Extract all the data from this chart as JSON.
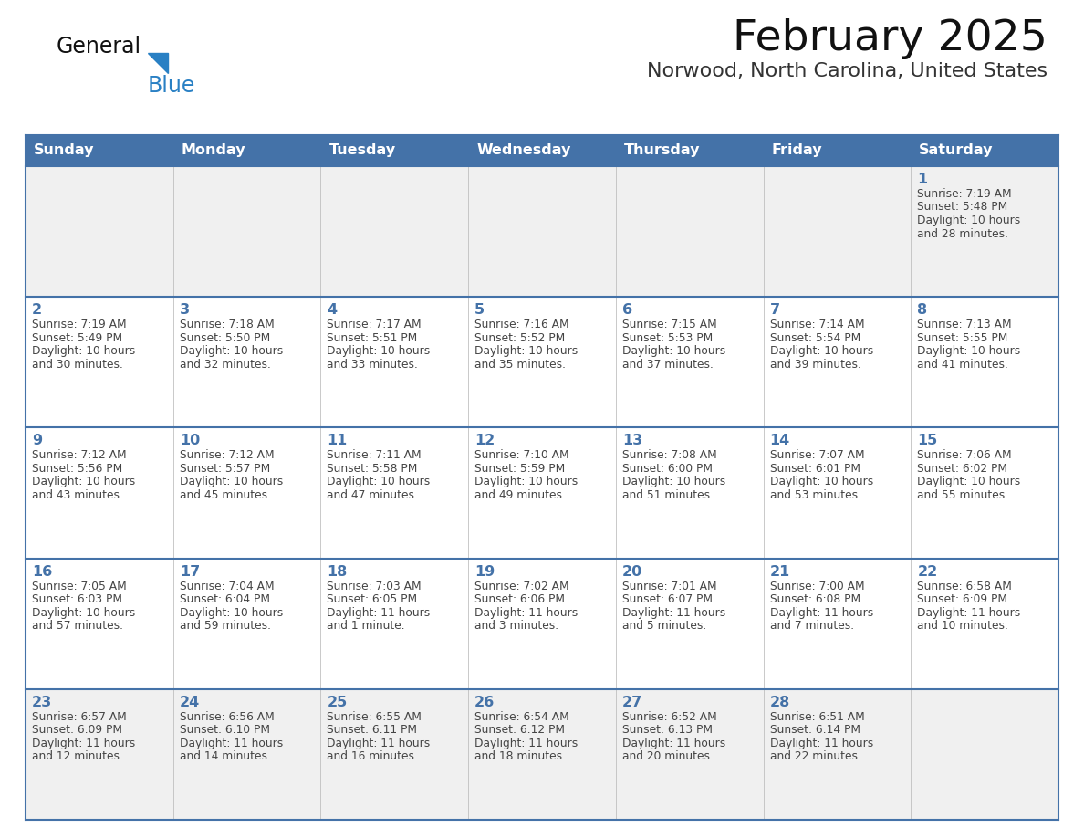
{
  "title": "February 2025",
  "subtitle": "Norwood, North Carolina, United States",
  "days_of_week": [
    "Sunday",
    "Monday",
    "Tuesday",
    "Wednesday",
    "Thursday",
    "Friday",
    "Saturday"
  ],
  "header_bg": "#4472a8",
  "header_text": "#ffffff",
  "row_bg_white": "#ffffff",
  "row_bg_light": "#f0f0f0",
  "cell_border_color": "#4472a8",
  "cell_divider_color": "#c0c0c0",
  "day_num_color": "#4472a8",
  "text_color": "#444444",
  "logo_general_color": "#111111",
  "logo_blue_color": "#2980c4",
  "calendar_data": [
    [
      null,
      null,
      null,
      null,
      null,
      null,
      {
        "day": 1,
        "sunrise": "7:19 AM",
        "sunset": "5:48 PM",
        "daylight": "10 hours and 28 minutes."
      }
    ],
    [
      {
        "day": 2,
        "sunrise": "7:19 AM",
        "sunset": "5:49 PM",
        "daylight": "10 hours and 30 minutes."
      },
      {
        "day": 3,
        "sunrise": "7:18 AM",
        "sunset": "5:50 PM",
        "daylight": "10 hours and 32 minutes."
      },
      {
        "day": 4,
        "sunrise": "7:17 AM",
        "sunset": "5:51 PM",
        "daylight": "10 hours and 33 minutes."
      },
      {
        "day": 5,
        "sunrise": "7:16 AM",
        "sunset": "5:52 PM",
        "daylight": "10 hours and 35 minutes."
      },
      {
        "day": 6,
        "sunrise": "7:15 AM",
        "sunset": "5:53 PM",
        "daylight": "10 hours and 37 minutes."
      },
      {
        "day": 7,
        "sunrise": "7:14 AM",
        "sunset": "5:54 PM",
        "daylight": "10 hours and 39 minutes."
      },
      {
        "day": 8,
        "sunrise": "7:13 AM",
        "sunset": "5:55 PM",
        "daylight": "10 hours and 41 minutes."
      }
    ],
    [
      {
        "day": 9,
        "sunrise": "7:12 AM",
        "sunset": "5:56 PM",
        "daylight": "10 hours and 43 minutes."
      },
      {
        "day": 10,
        "sunrise": "7:12 AM",
        "sunset": "5:57 PM",
        "daylight": "10 hours and 45 minutes."
      },
      {
        "day": 11,
        "sunrise": "7:11 AM",
        "sunset": "5:58 PM",
        "daylight": "10 hours and 47 minutes."
      },
      {
        "day": 12,
        "sunrise": "7:10 AM",
        "sunset": "5:59 PM",
        "daylight": "10 hours and 49 minutes."
      },
      {
        "day": 13,
        "sunrise": "7:08 AM",
        "sunset": "6:00 PM",
        "daylight": "10 hours and 51 minutes."
      },
      {
        "day": 14,
        "sunrise": "7:07 AM",
        "sunset": "6:01 PM",
        "daylight": "10 hours and 53 minutes."
      },
      {
        "day": 15,
        "sunrise": "7:06 AM",
        "sunset": "6:02 PM",
        "daylight": "10 hours and 55 minutes."
      }
    ],
    [
      {
        "day": 16,
        "sunrise": "7:05 AM",
        "sunset": "6:03 PM",
        "daylight": "10 hours and 57 minutes."
      },
      {
        "day": 17,
        "sunrise": "7:04 AM",
        "sunset": "6:04 PM",
        "daylight": "10 hours and 59 minutes."
      },
      {
        "day": 18,
        "sunrise": "7:03 AM",
        "sunset": "6:05 PM",
        "daylight": "11 hours and 1 minute."
      },
      {
        "day": 19,
        "sunrise": "7:02 AM",
        "sunset": "6:06 PM",
        "daylight": "11 hours and 3 minutes."
      },
      {
        "day": 20,
        "sunrise": "7:01 AM",
        "sunset": "6:07 PM",
        "daylight": "11 hours and 5 minutes."
      },
      {
        "day": 21,
        "sunrise": "7:00 AM",
        "sunset": "6:08 PM",
        "daylight": "11 hours and 7 minutes."
      },
      {
        "day": 22,
        "sunrise": "6:58 AM",
        "sunset": "6:09 PM",
        "daylight": "11 hours and 10 minutes."
      }
    ],
    [
      {
        "day": 23,
        "sunrise": "6:57 AM",
        "sunset": "6:09 PM",
        "daylight": "11 hours and 12 minutes."
      },
      {
        "day": 24,
        "sunrise": "6:56 AM",
        "sunset": "6:10 PM",
        "daylight": "11 hours and 14 minutes."
      },
      {
        "day": 25,
        "sunrise": "6:55 AM",
        "sunset": "6:11 PM",
        "daylight": "11 hours and 16 minutes."
      },
      {
        "day": 26,
        "sunrise": "6:54 AM",
        "sunset": "6:12 PM",
        "daylight": "11 hours and 18 minutes."
      },
      {
        "day": 27,
        "sunrise": "6:52 AM",
        "sunset": "6:13 PM",
        "daylight": "11 hours and 20 minutes."
      },
      {
        "day": 28,
        "sunrise": "6:51 AM",
        "sunset": "6:14 PM",
        "daylight": "11 hours and 22 minutes."
      },
      null
    ]
  ],
  "figsize": [
    11.88,
    9.18
  ],
  "dpi": 100
}
